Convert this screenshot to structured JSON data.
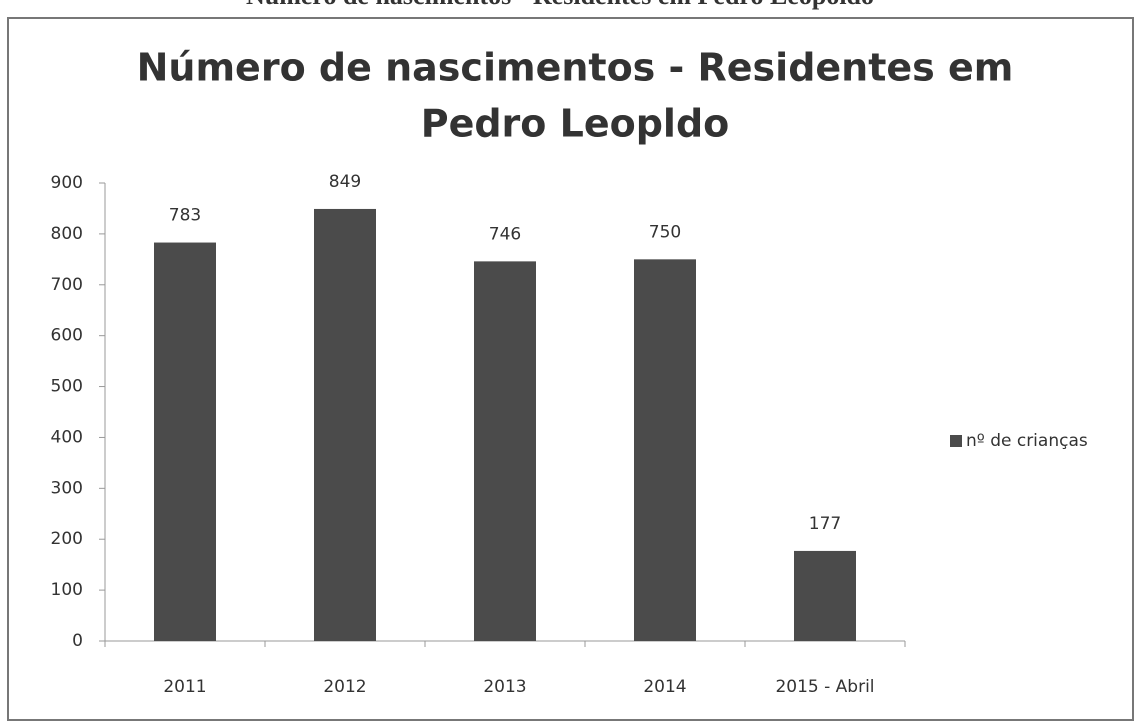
{
  "caption": "Número de nascimentos - Residentes em Pedro Leopoldo",
  "chart_data": {
    "type": "bar",
    "title": [
      "Número de nascimentos - Residentes em",
      "Pedro Leopldo"
    ],
    "categories": [
      "2011",
      "2012",
      "2013",
      "2014",
      "2015 - Abril"
    ],
    "series": [
      {
        "name": "nº de crianças",
        "color": "#4b4b4b",
        "values": [
          783,
          849,
          746,
          750,
          177
        ]
      }
    ],
    "ylim": [
      0,
      900
    ],
    "yticks": [
      0,
      100,
      200,
      300,
      400,
      500,
      600,
      700,
      800,
      900
    ],
    "grid": false,
    "legend": "right"
  }
}
